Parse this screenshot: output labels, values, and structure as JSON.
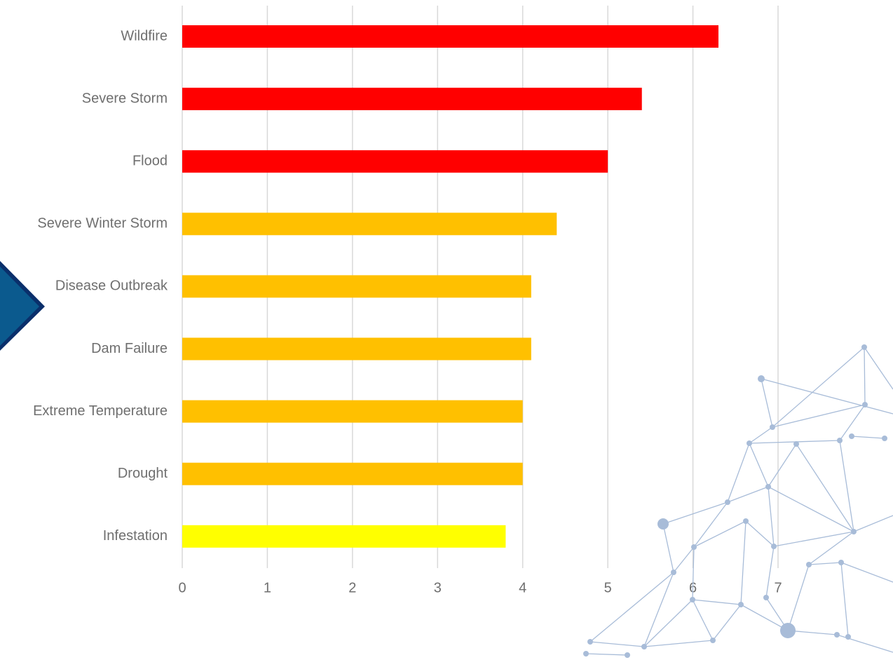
{
  "chart_data": {
    "type": "bar",
    "orientation": "horizontal",
    "categories": [
      "Wildfire",
      "Severe Storm",
      "Flood",
      "Severe Winter Storm",
      "Disease Outbreak",
      "Dam Failure",
      "Extreme Temperature",
      "Drought",
      "Infestation"
    ],
    "values": [
      6.3,
      5.4,
      5.0,
      4.4,
      4.1,
      4.1,
      4.0,
      4.0,
      3.8
    ],
    "colors": [
      "#ff0000",
      "#ff0000",
      "#ff0000",
      "#ffc000",
      "#ffc000",
      "#ffc000",
      "#ffc000",
      "#ffc000",
      "#ffff00"
    ],
    "xlim": [
      0,
      7
    ],
    "xticks": [
      0,
      1,
      2,
      3,
      4,
      5,
      6,
      7
    ],
    "grid": true
  }
}
